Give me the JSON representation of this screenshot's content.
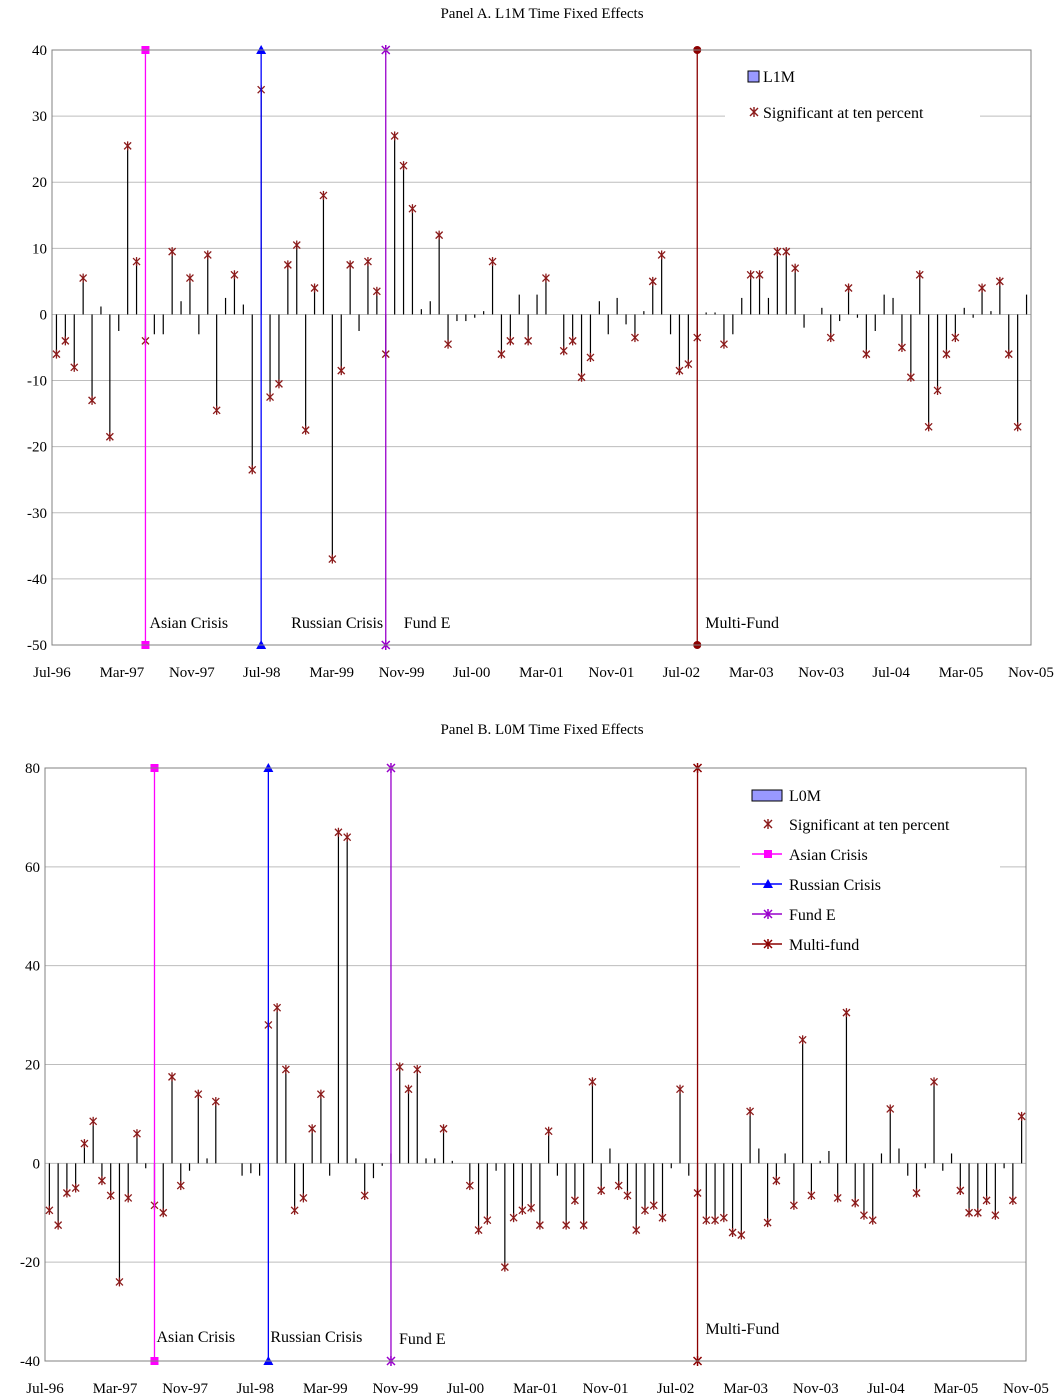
{
  "chart_data": [
    {
      "type": "bar",
      "title": "Panel A. L1M Time Fixed Effects",
      "ylim": [
        -50,
        40
      ],
      "yticks": [
        40,
        30,
        20,
        10,
        0,
        -10,
        -20,
        -30,
        -40,
        -50
      ],
      "xtick_labels": [
        "Jul-96",
        "Mar-97",
        "Nov-97",
        "Jul-98",
        "Mar-99",
        "Nov-99",
        "Jul-00",
        "Mar-01",
        "Nov-01",
        "Jul-02",
        "Mar-03",
        "Nov-03",
        "Jul-04",
        "Mar-05",
        "Nov-05"
      ],
      "grid": "horizontal",
      "series": [
        {
          "name": "L1M",
          "color": "#9999ff",
          "values": [
            -6,
            -4,
            -8,
            5.5,
            -13,
            1.2,
            -18.5,
            -2.5,
            25.5,
            8,
            -4,
            -3,
            -3,
            9.5,
            2,
            5.5,
            -3,
            9,
            -14.5,
            2.5,
            6,
            1.5,
            -23.5,
            34,
            -12.5,
            -10.5,
            7.5,
            10.5,
            -17.5,
            4,
            18,
            -37,
            -8.5,
            7.5,
            -2.5,
            8,
            3.5,
            -6,
            27,
            22.5,
            16,
            0.8,
            2,
            12,
            -4.5,
            -1,
            -1,
            -0.5,
            0.5,
            8,
            -6,
            -4,
            3,
            -4,
            3,
            5.5,
            0,
            -5.5,
            -4,
            -9.5,
            -6.5,
            2,
            -3,
            2.5,
            -1.5,
            -3.5,
            0.5,
            5,
            9,
            -3,
            -8.5,
            -7.5,
            -3.5,
            0.3,
            0.3,
            -4.5,
            -3,
            2.5,
            6,
            6,
            2.5,
            9.5,
            9.5,
            7,
            -2,
            0,
            1,
            -3.5,
            -1,
            4,
            -0.5,
            -6,
            -2.5,
            3,
            2.5,
            -5,
            -9.5,
            6,
            -17,
            -11.5,
            -6,
            -3.5,
            1,
            -0.5,
            4,
            0.5,
            5,
            -6,
            -17,
            3
          ]
        },
        {
          "name": "Significant at ten percent",
          "marker": "x",
          "color": "#8b1a1a"
        }
      ],
      "events": [
        {
          "label": "Asian Crisis",
          "index": 10,
          "color": "#ff00ff",
          "marker": "square"
        },
        {
          "label": "Russian Crisis",
          "index": 23,
          "color": "#0000ff",
          "marker": "triangle"
        },
        {
          "label": "Fund E",
          "index": 37,
          "color": "#9900cc",
          "marker": "star"
        },
        {
          "label": "Multi-Fund",
          "index": 72,
          "color": "#8b0000",
          "marker": "circle"
        }
      ],
      "legend": {
        "position": "top-right",
        "entries": [
          "L1M",
          "Significant at ten percent"
        ]
      }
    },
    {
      "type": "bar",
      "title": "Panel B. L0M Time Fixed Effects",
      "ylim": [
        -40,
        80
      ],
      "yticks": [
        80,
        60,
        40,
        20,
        0,
        -20,
        -40
      ],
      "xtick_labels": [
        "Jul-96",
        "Mar-97",
        "Nov-97",
        "Jul-98",
        "Mar-99",
        "Nov-99",
        "Jul-00",
        "Mar-01",
        "Nov-01",
        "Jul-02",
        "Mar-03",
        "Nov-03",
        "Jul-04",
        "Mar-05",
        "Nov-05"
      ],
      "grid": "horizontal",
      "series": [
        {
          "name": "L0M",
          "color": "#9999ff",
          "values": [
            -9.5,
            -12.5,
            -6,
            -5,
            4,
            8.5,
            -3.5,
            -6.5,
            -24,
            -7,
            6,
            -1,
            -8.5,
            -10,
            17.5,
            -4.5,
            -1.5,
            14,
            1,
            12.5,
            0,
            0,
            -2.5,
            -2,
            -2.5,
            28,
            31.5,
            19,
            -9.5,
            -7,
            7,
            14,
            -2.5,
            67,
            66,
            1,
            -6.5,
            -3,
            -0.5,
            2,
            19.5,
            15,
            19,
            1,
            1,
            7,
            0.5,
            0,
            -4.5,
            -13.5,
            -11.5,
            -1.5,
            -21,
            -11,
            -9.5,
            -9,
            -12.5,
            6.5,
            -2.5,
            -12.5,
            -7.5,
            -12.5,
            16.5,
            -5.5,
            3,
            -4.5,
            -6.5,
            -13.5,
            -9.5,
            -8.5,
            -11,
            -1,
            15,
            -2.5,
            -6,
            -11.5,
            -11.5,
            -11,
            -14,
            -14.5,
            10.5,
            3,
            -12,
            -3.5,
            2,
            -8.5,
            25,
            -6.5,
            0.5,
            2.5,
            -7,
            30.5,
            -8,
            -10.5,
            -11.5,
            2,
            11,
            3,
            -2.5,
            -6,
            -1,
            16.5,
            -1.5,
            2,
            -5.5,
            -10,
            -10,
            -7.5,
            -10.5,
            -1,
            -7.5,
            9.5
          ]
        },
        {
          "name": "Significant at ten percent",
          "marker": "x",
          "color": "#8b1a1a"
        }
      ],
      "events": [
        {
          "label": "Asian Crisis",
          "index": 12,
          "color": "#ff00ff",
          "marker": "square"
        },
        {
          "label": "Russian Crisis",
          "index": 25,
          "color": "#0000ff",
          "marker": "triangle"
        },
        {
          "label": "Fund E",
          "index": 39,
          "color": "#9900cc",
          "marker": "star"
        },
        {
          "label": "Multi-Fund",
          "index": 74,
          "color": "#8b0000",
          "marker": "star"
        }
      ],
      "legend": {
        "position": "top-right",
        "entries": [
          "L0M",
          "Significant at ten percent",
          "Asian Crisis",
          "Russian Crisis",
          "Fund E",
          "Multi-fund"
        ]
      }
    }
  ]
}
